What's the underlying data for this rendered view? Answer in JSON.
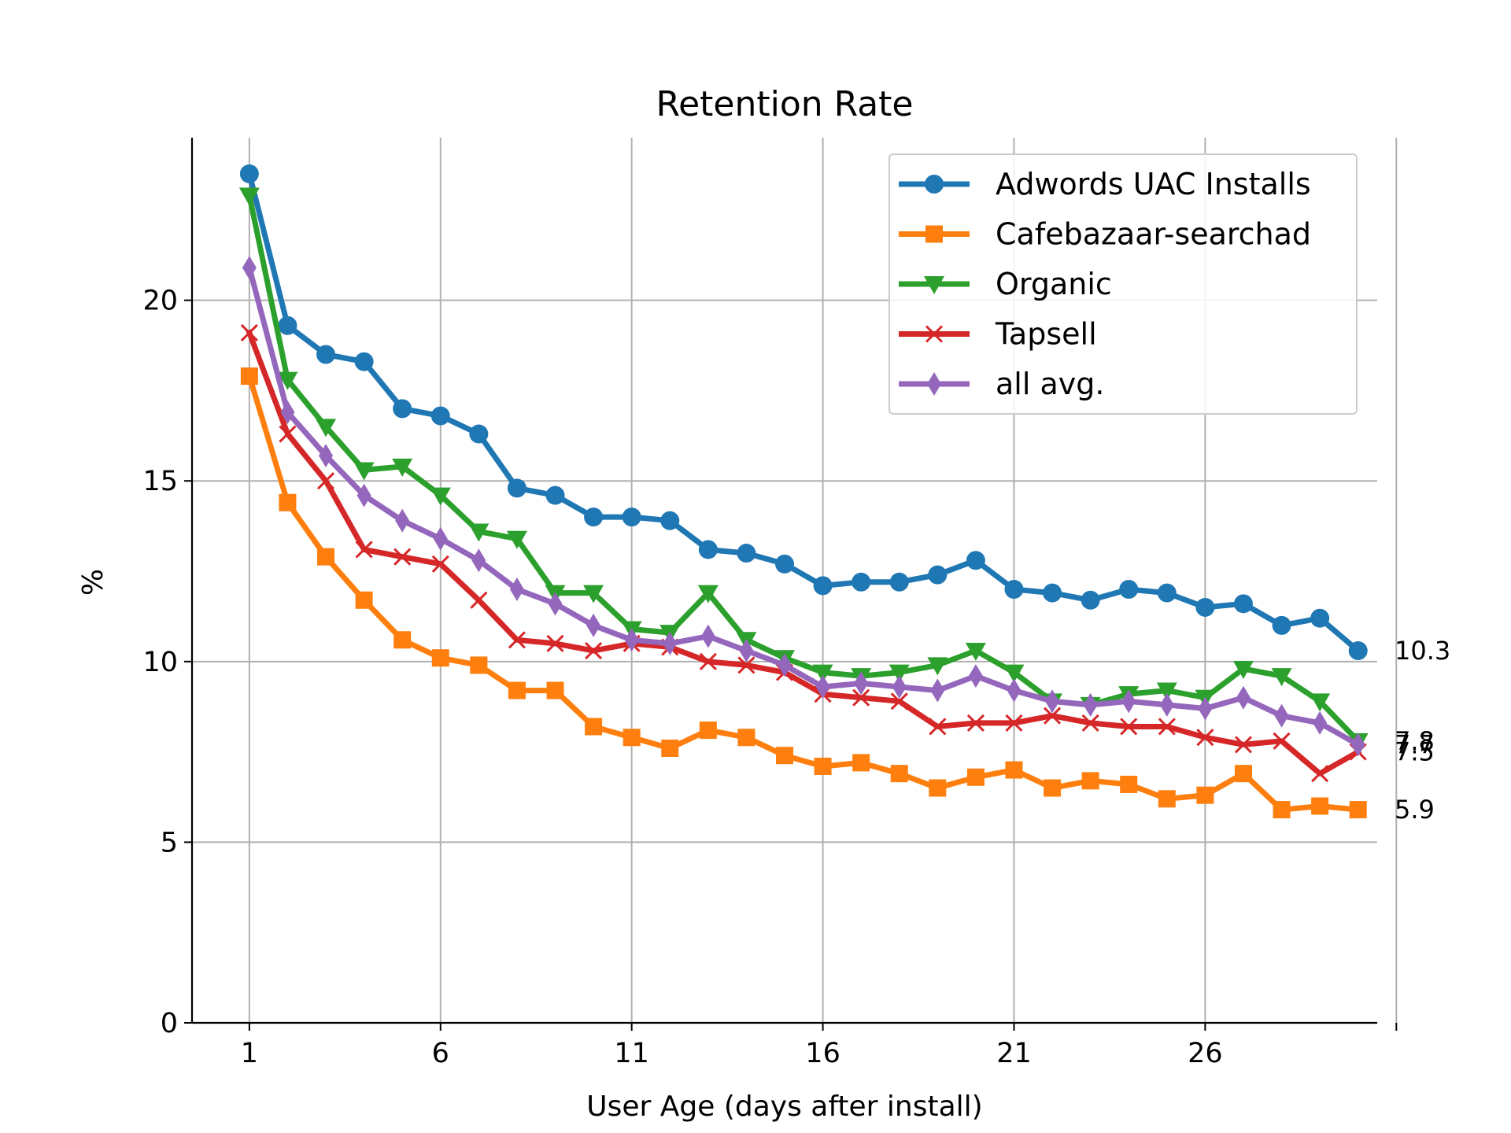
{
  "chart_data": {
    "type": "line",
    "title": "Retention Rate",
    "xlabel": "User Age (days after install)",
    "ylabel": "%",
    "xlim": [
      -0.5,
      30.5
    ],
    "ylim": [
      0,
      24.5
    ],
    "xticks": [
      1,
      6,
      11,
      16,
      21,
      26,
      31
    ],
    "xtick_labels": [
      "1",
      "6",
      "11",
      "16",
      "21",
      "26",
      ""
    ],
    "yticks": [
      0,
      5,
      10,
      15,
      20
    ],
    "ytick_labels": [
      "0",
      "5",
      "10",
      "15",
      "20"
    ],
    "grid": true,
    "legend_position": "top-right",
    "x": [
      1,
      2,
      3,
      4,
      5,
      6,
      7,
      8,
      9,
      10,
      11,
      12,
      13,
      14,
      15,
      16,
      17,
      18,
      19,
      20,
      21,
      22,
      23,
      24,
      25,
      26,
      27,
      28,
      29,
      30
    ],
    "series": [
      {
        "name": "Adwords UAC Installs",
        "color": "#1f77b4",
        "marker": "circle",
        "values": [
          23.5,
          19.3,
          18.5,
          18.3,
          17.0,
          16.8,
          16.3,
          14.8,
          14.6,
          14.0,
          14.0,
          13.9,
          13.1,
          13.0,
          12.7,
          12.1,
          12.2,
          12.2,
          12.4,
          12.8,
          12.0,
          11.9,
          11.7,
          12.0,
          11.9,
          11.5,
          11.6,
          11.0,
          11.2,
          10.3
        ],
        "end_label": "10.3"
      },
      {
        "name": "Cafebazaar-searchad",
        "color": "#ff7f0e",
        "marker": "square",
        "values": [
          17.9,
          14.4,
          12.9,
          11.7,
          10.6,
          10.1,
          9.9,
          9.2,
          9.2,
          8.2,
          7.9,
          7.6,
          8.1,
          7.9,
          7.4,
          7.1,
          7.2,
          6.9,
          6.5,
          6.8,
          7.0,
          6.5,
          6.7,
          6.6,
          6.2,
          6.3,
          6.9,
          5.9,
          6.0,
          5.9
        ],
        "end_label": "5.9"
      },
      {
        "name": "Organic",
        "color": "#2ca02c",
        "marker": "triangle-down",
        "values": [
          22.9,
          17.8,
          16.5,
          15.3,
          15.4,
          14.6,
          13.6,
          13.4,
          11.9,
          11.9,
          10.9,
          10.8,
          11.9,
          10.6,
          10.1,
          9.7,
          9.6,
          9.7,
          9.9,
          10.3,
          9.7,
          8.9,
          8.8,
          9.1,
          9.2,
          9.0,
          9.8,
          9.6,
          8.9,
          7.8
        ],
        "end_label": "7.8"
      },
      {
        "name": "Tapsell",
        "color": "#d62728",
        "marker": "x",
        "values": [
          19.1,
          16.3,
          15.0,
          13.1,
          12.9,
          12.7,
          11.7,
          10.6,
          10.5,
          10.3,
          10.5,
          10.4,
          10.0,
          9.9,
          9.7,
          9.1,
          9.0,
          8.9,
          8.2,
          8.3,
          8.3,
          8.5,
          8.3,
          8.2,
          8.2,
          7.9,
          7.7,
          7.8,
          6.9,
          7.5
        ],
        "end_label": "7.5"
      },
      {
        "name": "all avg.",
        "color": "#9467bd",
        "marker": "diamond",
        "values": [
          20.9,
          16.9,
          15.7,
          14.6,
          13.9,
          13.4,
          12.8,
          12.0,
          11.6,
          11.0,
          10.6,
          10.5,
          10.7,
          10.3,
          9.9,
          9.3,
          9.4,
          9.3,
          9.2,
          9.6,
          9.2,
          8.9,
          8.8,
          8.9,
          8.8,
          8.7,
          9.0,
          8.5,
          8.3,
          7.7
        ],
        "end_label": "7.7"
      }
    ]
  }
}
